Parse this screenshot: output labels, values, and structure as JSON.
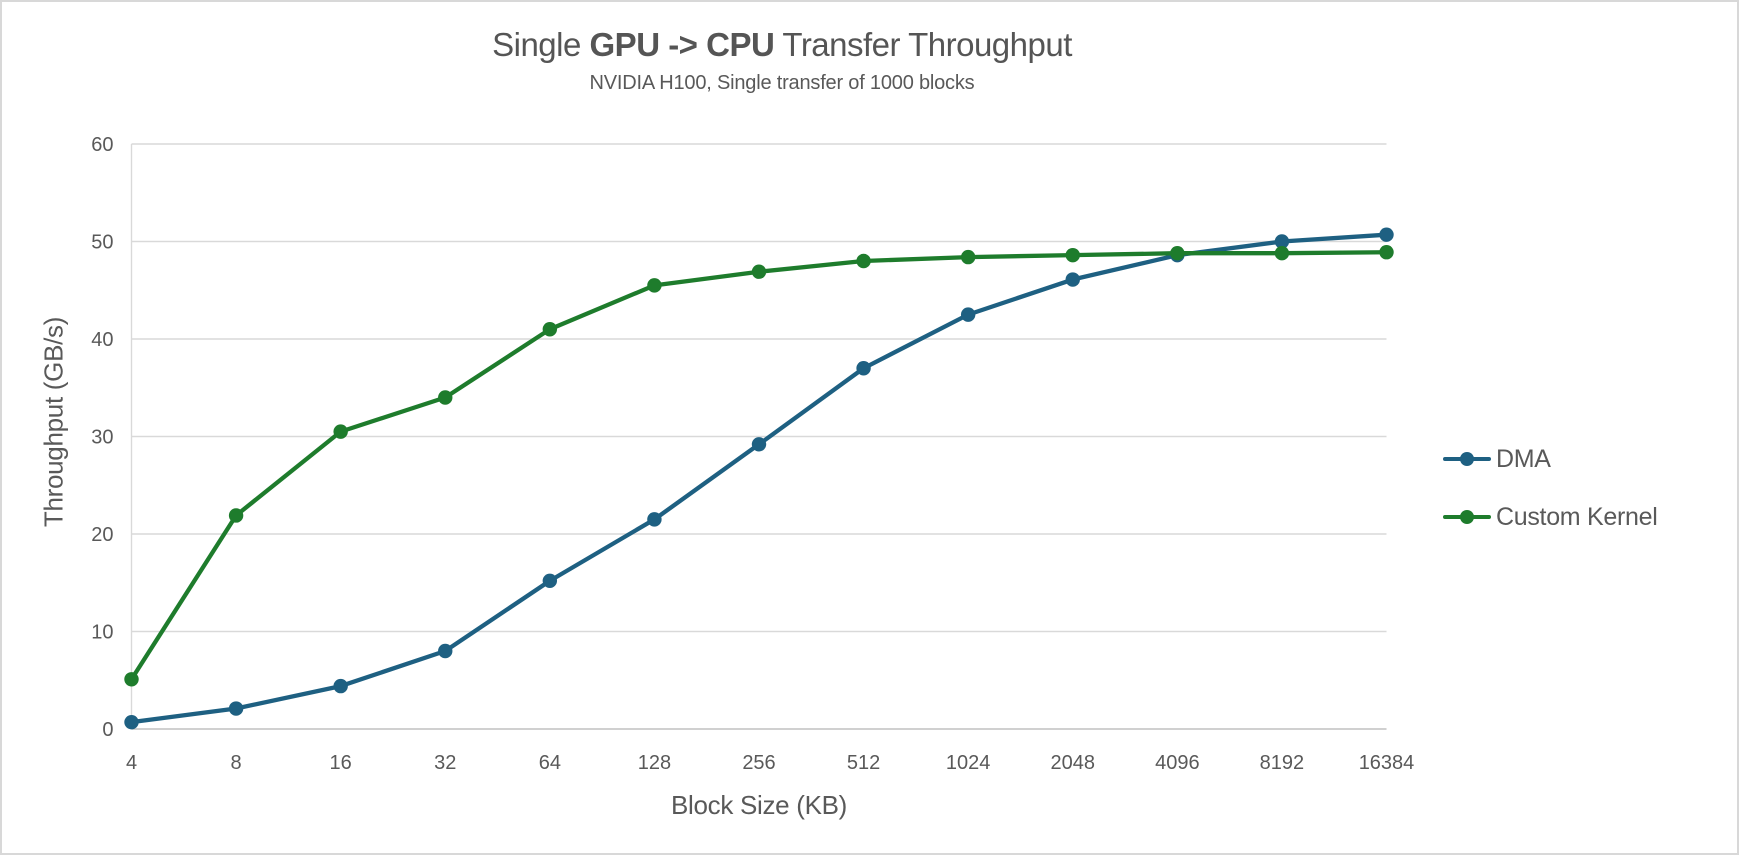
{
  "title": {
    "prefix": "Single ",
    "bold": "GPU -> CPU",
    "suffix": " Transfer Throughput"
  },
  "subtitle": "NVIDIA H100, Single transfer of 1000 blocks",
  "legend": {
    "position": "right",
    "items": [
      {
        "label": "DMA",
        "color": "#1E6082"
      },
      {
        "label": "Custom Kernel",
        "color": "#1E7C2C"
      }
    ]
  },
  "chart_data": {
    "type": "line",
    "title": "Single GPU -> CPU Transfer Throughput",
    "subtitle": "NVIDIA H100, Single transfer of 1000 blocks",
    "xlabel": "Block Size (KB)",
    "ylabel": "Throughput (GB/s)",
    "x_scale": "categorical (powers of 2)",
    "categories": [
      4,
      8,
      16,
      32,
      64,
      128,
      256,
      512,
      1024,
      2048,
      4096,
      8192,
      16384
    ],
    "x_tick_labels": [
      "4",
      "8",
      "16",
      "32",
      "64",
      "128",
      "256",
      "512",
      "1024",
      "2048",
      "4096",
      "8192",
      "16384"
    ],
    "ylim": [
      0,
      60
    ],
    "y_tick_step": 10,
    "y_tick_labels": [
      "0",
      "10",
      "20",
      "30",
      "40",
      "50",
      "60"
    ],
    "grid": "horizontal",
    "legend_position": "right",
    "series": [
      {
        "name": "DMA",
        "color": "#1E6082",
        "marker": "circle",
        "values": [
          0.7,
          2.1,
          4.4,
          8.0,
          15.2,
          21.5,
          29.2,
          37.0,
          42.5,
          46.1,
          48.6,
          50.0,
          50.7
        ]
      },
      {
        "name": "Custom Kernel",
        "color": "#1E7C2C",
        "marker": "circle",
        "values": [
          5.1,
          21.9,
          30.5,
          34.0,
          41.0,
          45.5,
          46.9,
          48.0,
          48.4,
          48.6,
          48.8,
          48.8,
          48.9
        ]
      }
    ],
    "style_colors": {
      "gridline": "#D9D9D9",
      "axis_line": "#C0C0C0",
      "tick_text": "#595959",
      "title_text": "#555555"
    }
  }
}
